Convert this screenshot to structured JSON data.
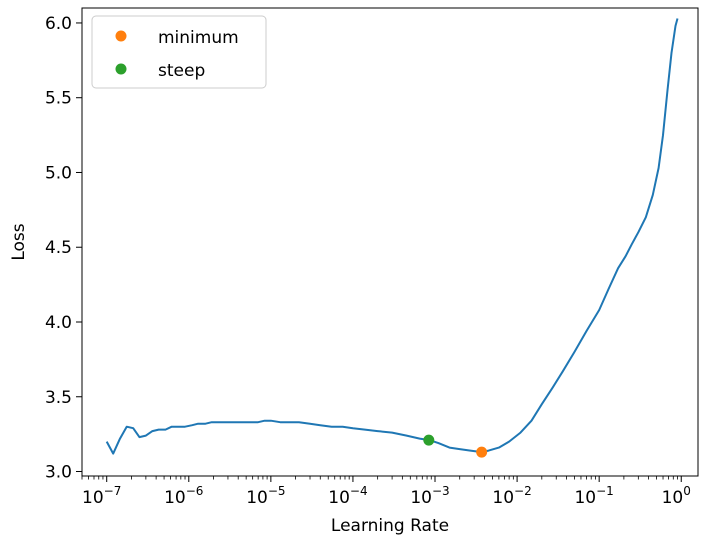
{
  "chart_data": {
    "type": "line",
    "xlabel": "Learning Rate",
    "ylabel": "Loss",
    "x_scale": "log",
    "xlim": [
      5e-08,
      1.6
    ],
    "ylim": [
      2.97,
      6.1
    ],
    "grid": false,
    "legend_position": "top-left",
    "x_ticks": [
      {
        "value": 1e-07,
        "base": "10",
        "exp": "−7"
      },
      {
        "value": 1e-06,
        "base": "10",
        "exp": "−6"
      },
      {
        "value": 1e-05,
        "base": "10",
        "exp": "−5"
      },
      {
        "value": 0.0001,
        "base": "10",
        "exp": "−4"
      },
      {
        "value": 0.001,
        "base": "10",
        "exp": "−3"
      },
      {
        "value": 0.01,
        "base": "10",
        "exp": "−2"
      },
      {
        "value": 0.1,
        "base": "10",
        "exp": "−1"
      },
      {
        "value": 1,
        "base": "10",
        "exp": "0"
      }
    ],
    "y_ticks": [
      {
        "value": 3.0,
        "label": "3.0"
      },
      {
        "value": 3.5,
        "label": "3.5"
      },
      {
        "value": 4.0,
        "label": "4.0"
      },
      {
        "value": 4.5,
        "label": "4.5"
      },
      {
        "value": 5.0,
        "label": "5.0"
      },
      {
        "value": 5.5,
        "label": "5.5"
      },
      {
        "value": 6.0,
        "label": "6.0"
      }
    ],
    "series": [
      {
        "color": "#1f77b4",
        "x": [
          1e-07,
          1.2e-07,
          1.45e-07,
          1.75e-07,
          2.1e-07,
          2.5e-07,
          3e-07,
          3.6e-07,
          4.3e-07,
          5.2e-07,
          6.2e-07,
          7.5e-07,
          9e-07,
          1.1e-06,
          1.3e-06,
          1.6e-06,
          1.9e-06,
          2.3e-06,
          2.8e-06,
          3.3e-06,
          4e-06,
          4.8e-06,
          5.8e-06,
          7e-06,
          8.4e-06,
          1e-05,
          1.3e-05,
          1.7e-05,
          2.2e-05,
          3e-05,
          4e-05,
          5.5e-05,
          7.5e-05,
          0.0001,
          0.00014,
          0.0002,
          0.0003,
          0.00045,
          0.00065,
          0.00085,
          0.0011,
          0.0015,
          0.002,
          0.0027,
          0.0037,
          0.0045,
          0.006,
          0.008,
          0.011,
          0.015,
          0.02,
          0.027,
          0.036,
          0.05,
          0.07,
          0.1,
          0.13,
          0.17,
          0.21,
          0.25,
          0.3,
          0.37,
          0.45,
          0.53,
          0.6,
          0.68,
          0.76,
          0.85,
          0.9
        ],
        "y": [
          3.2,
          3.12,
          3.22,
          3.3,
          3.29,
          3.23,
          3.24,
          3.27,
          3.28,
          3.28,
          3.3,
          3.3,
          3.3,
          3.31,
          3.32,
          3.32,
          3.33,
          3.33,
          3.33,
          3.33,
          3.33,
          3.33,
          3.33,
          3.33,
          3.34,
          3.34,
          3.33,
          3.33,
          3.33,
          3.32,
          3.31,
          3.3,
          3.3,
          3.29,
          3.28,
          3.27,
          3.26,
          3.24,
          3.22,
          3.21,
          3.19,
          3.16,
          3.15,
          3.14,
          3.13,
          3.14,
          3.16,
          3.2,
          3.26,
          3.34,
          3.45,
          3.56,
          3.67,
          3.8,
          3.94,
          4.08,
          4.22,
          4.36,
          4.44,
          4.52,
          4.6,
          4.7,
          4.85,
          5.03,
          5.25,
          5.55,
          5.8,
          5.98,
          6.03
        ]
      }
    ],
    "markers": [
      {
        "name": "minimum",
        "x": 0.0037,
        "y": 3.13,
        "color": "#ff7f0e"
      },
      {
        "name": "steep",
        "x": 0.00084,
        "y": 3.21,
        "color": "#2ca02c"
      }
    ]
  }
}
